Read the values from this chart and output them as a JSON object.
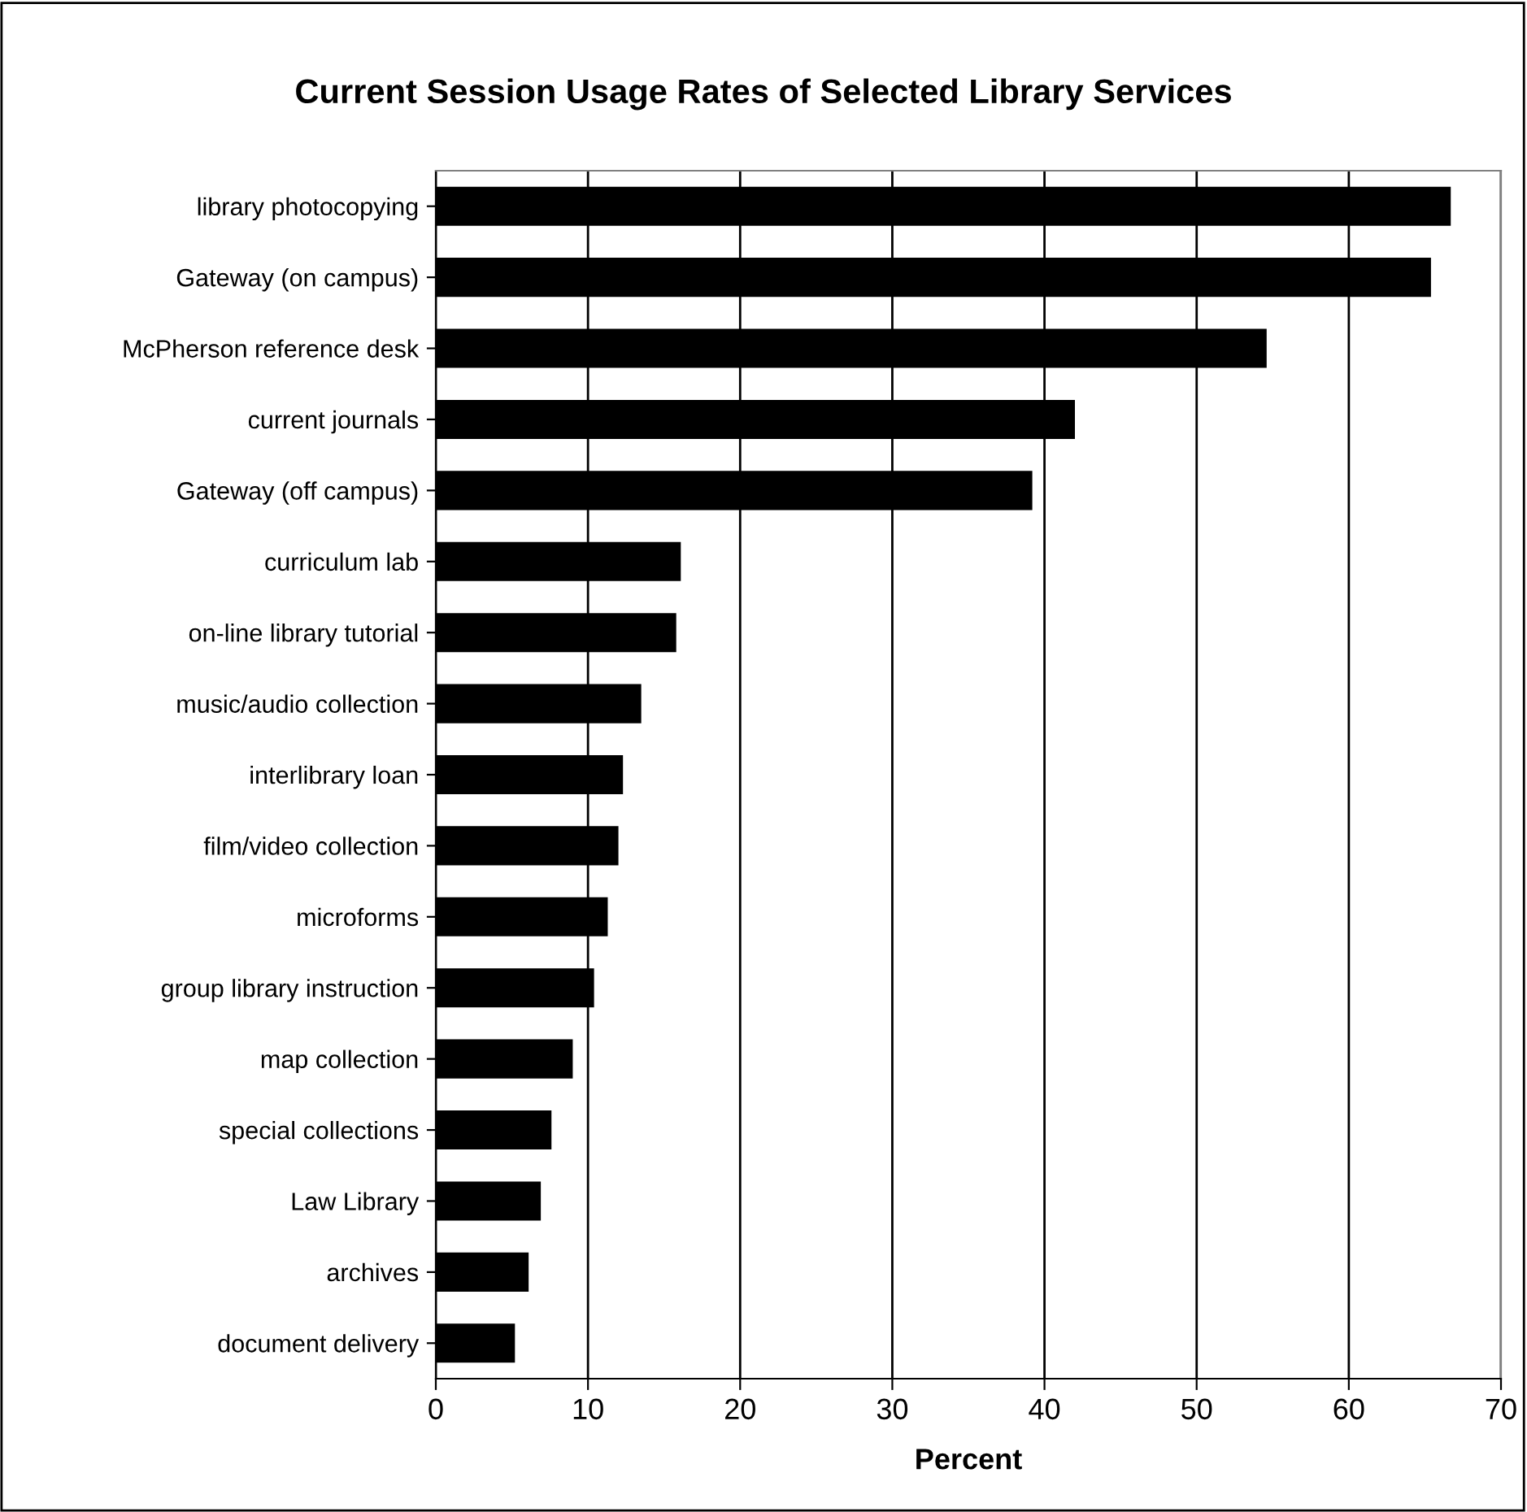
{
  "chart_data": {
    "type": "bar",
    "orientation": "horizontal",
    "title": "Current Session Usage Rates of Selected Library Services",
    "xlabel": "Percent",
    "categories": [
      "library photocopying",
      "Gateway (on campus)",
      "McPherson reference desk",
      "current journals",
      "Gateway (off campus)",
      "curriculum lab",
      "on-line library tutorial",
      "music/audio collection",
      "interlibrary loan",
      "film/video collection",
      "microforms",
      "group library instruction",
      "map collection",
      "special collections",
      "Law Library",
      "archives",
      "document delivery"
    ],
    "values": [
      66.7,
      65.4,
      54.6,
      42.0,
      39.2,
      16.1,
      15.8,
      13.5,
      12.3,
      12.0,
      11.3,
      10.4,
      9.0,
      7.6,
      6.9,
      6.1,
      5.2
    ],
    "color": "#000000",
    "xlim": [
      0,
      70
    ],
    "xticks": [
      0,
      10,
      20,
      30,
      40,
      50,
      60,
      70
    ],
    "grid": "x",
    "legend": false
  }
}
